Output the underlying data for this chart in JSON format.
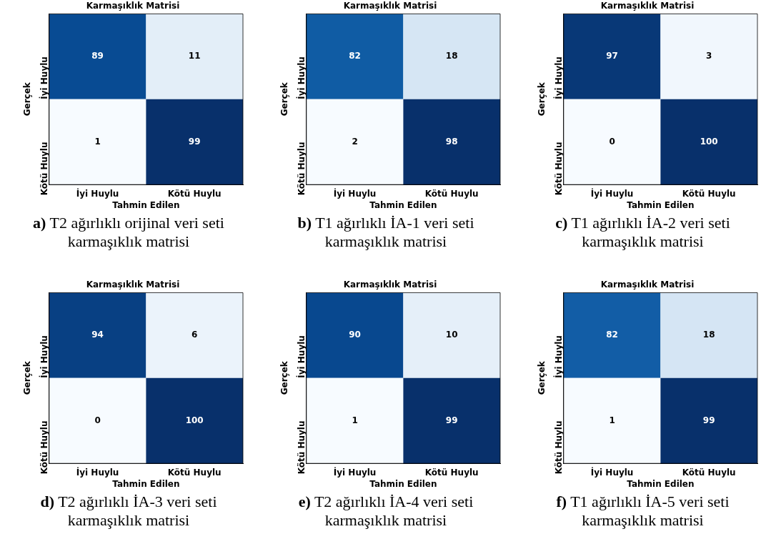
{
  "chart_data": [
    {
      "type": "heatmap",
      "title": "Karmaşıklık Matrisi",
      "xlabel": "Tahmin Edilen",
      "ylabel": "Gerçek",
      "categories": [
        "İyi Huylu",
        "Kötü Huylu"
      ],
      "y_categories": [
        "İyi Huylu",
        "Kötü Huylu"
      ],
      "cells": [
        [
          89,
          11
        ],
        [
          1,
          99
        ]
      ],
      "data_labels": true,
      "annotations": [
        "a) T2 ağırlıklı orijinal veri seti karmaşıklık matrisi"
      ]
    },
    {
      "type": "heatmap",
      "title": "Karmaşıklık Matrisi",
      "xlabel": "Tahmin Edilen",
      "ylabel": "Gerçek",
      "categories": [
        "İyi Huylu",
        "Kötü Huylu"
      ],
      "y_categories": [
        "İyi Huylu",
        "Kötü Huylu"
      ],
      "cells": [
        [
          82,
          18
        ],
        [
          2,
          98
        ]
      ],
      "data_labels": true,
      "annotations": [
        "b) T1 ağırlıklı İA-1 veri seti karmaşıklık matrisi"
      ]
    },
    {
      "type": "heatmap",
      "title": "Karmaşıklık Matrisi",
      "xlabel": "Tahmin Edilen",
      "ylabel": "Gerçek",
      "categories": [
        "İyi Huylu",
        "Kötü Huylu"
      ],
      "y_categories": [
        "İyi Huylu",
        "Kötü Huylu"
      ],
      "cells": [
        [
          97,
          3
        ],
        [
          0,
          100
        ]
      ],
      "data_labels": true,
      "annotations": [
        "c) T1 ağırlıklı İA-2 veri seti karmaşıklık matrisi"
      ]
    },
    {
      "type": "heatmap",
      "title": "Karmaşıklık Matrisi",
      "xlabel": "Tahmin Edilen",
      "ylabel": "Gerçek",
      "categories": [
        "İyi Huylu",
        "Kötü Huylu"
      ],
      "y_categories": [
        "İyi Huylu",
        "Kötü Huylu"
      ],
      "cells": [
        [
          94,
          6
        ],
        [
          0,
          100
        ]
      ],
      "data_labels": true,
      "annotations": [
        "d) T2 ağırlıklı İA-3 veri seti karmaşıklık matrisi"
      ]
    },
    {
      "type": "heatmap",
      "title": "Karmaşıklık Matrisi",
      "xlabel": "Tahmin Edilen",
      "ylabel": "Gerçek",
      "categories": [
        "İyi Huylu",
        "Kötü Huylu"
      ],
      "y_categories": [
        "İyi Huylu",
        "Kötü Huylu"
      ],
      "cells": [
        [
          90,
          10
        ],
        [
          1,
          99
        ]
      ],
      "data_labels": true,
      "annotations": [
        "e) T2 ağırlıklı İA-4 veri seti karmaşıklık matrisi"
      ]
    },
    {
      "type": "heatmap",
      "title": "Karmaşıklık Matrisi",
      "xlabel": "Tahmin Edilen",
      "ylabel": "Gerçek",
      "categories": [
        "İyi Huylu",
        "Kötü Huylu"
      ],
      "y_categories": [
        "İyi Huylu",
        "Kötü Huylu"
      ],
      "cells": [
        [
          82,
          18
        ],
        [
          1,
          99
        ]
      ],
      "data_labels": true,
      "annotations": [
        "f) T1 ağırlıklı İA-5 veri seti karmaşıklık matrisi"
      ]
    }
  ]
}
